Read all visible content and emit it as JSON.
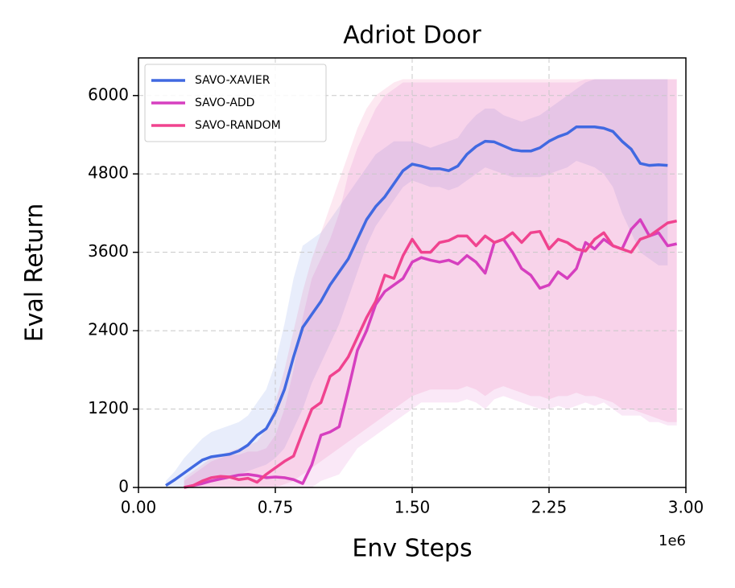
{
  "chart_data": {
    "type": "line",
    "title": "Adriot Door",
    "xlabel": "Env Steps",
    "ylabel": "Eval Return",
    "x_offset_label": "1e6",
    "xlim": [
      0,
      3.0
    ],
    "ylim": [
      0,
      6576
    ],
    "xticks": [
      {
        "value": 0,
        "label": "0.00"
      },
      {
        "value": 0.75,
        "label": "0.75"
      },
      {
        "value": 1.5,
        "label": "1.50"
      },
      {
        "value": 2.25,
        "label": "2.25"
      },
      {
        "value": 3.0,
        "label": "3.00"
      }
    ],
    "yticks": [
      0,
      1200,
      2400,
      3600,
      4800,
      6000
    ],
    "grid": true,
    "legend_loc": "upper left",
    "x": [
      0.15,
      0.2,
      0.25,
      0.3,
      0.35,
      0.4,
      0.45,
      0.5,
      0.55,
      0.6,
      0.65,
      0.7,
      0.75,
      0.8,
      0.85,
      0.9,
      0.95,
      1.0,
      1.05,
      1.1,
      1.15,
      1.2,
      1.25,
      1.3,
      1.35,
      1.4,
      1.45,
      1.5,
      1.55,
      1.6,
      1.65,
      1.7,
      1.75,
      1.8,
      1.85,
      1.9,
      1.95,
      2.0,
      2.05,
      2.1,
      2.15,
      2.2,
      2.25,
      2.3,
      2.35,
      2.4,
      2.45,
      2.5,
      2.55,
      2.6,
      2.65,
      2.7,
      2.75,
      2.8,
      2.85,
      2.9,
      2.95
    ],
    "series": [
      {
        "name": "SAVO-XAVIER",
        "color": "#4169e1",
        "values": [
          30,
          120,
          220,
          320,
          420,
          470,
          490,
          510,
          560,
          650,
          800,
          900,
          1150,
          1500,
          2000,
          2450,
          2650,
          2850,
          3100,
          3300,
          3500,
          3800,
          4100,
          4300,
          4450,
          4650,
          4850,
          4950,
          4920,
          4880,
          4880,
          4850,
          4920,
          5100,
          5220,
          5300,
          5290,
          5230,
          5170,
          5150,
          5150,
          5200,
          5300,
          5370,
          5420,
          5520,
          5520,
          5520,
          5500,
          5450,
          5300,
          5180,
          4960,
          4930,
          4940,
          4930,
          null
        ],
        "lower": [
          0,
          0,
          0,
          0,
          50,
          100,
          150,
          180,
          200,
          250,
          300,
          350,
          450,
          600,
          900,
          1200,
          1600,
          1900,
          2200,
          2500,
          2900,
          3300,
          3700,
          4000,
          4200,
          4400,
          4600,
          4700,
          4650,
          4600,
          4600,
          4550,
          4600,
          4700,
          4800,
          4900,
          4850,
          4800,
          4750,
          4750,
          4750,
          4750,
          4800,
          4850,
          4900,
          5000,
          4950,
          4900,
          4800,
          4600,
          4200,
          3900,
          3600,
          3500,
          3400,
          3400,
          null
        ],
        "upper": [
          100,
          250,
          450,
          600,
          750,
          850,
          900,
          950,
          1000,
          1100,
          1300,
          1500,
          1900,
          2500,
          3200,
          3700,
          3800,
          3900,
          4100,
          4300,
          4500,
          4700,
          4900,
          5100,
          5200,
          5300,
          5300,
          5300,
          5250,
          5200,
          5250,
          5300,
          5350,
          5550,
          5700,
          5800,
          5800,
          5700,
          5650,
          5600,
          5650,
          5700,
          5800,
          5900,
          6000,
          6100,
          6200,
          6250,
          6250,
          6250,
          6250,
          6250,
          6250,
          6250,
          6250,
          6250,
          null
        ]
      },
      {
        "name": "SAVO-ADD",
        "color": "#d63fbf",
        "values": [
          null,
          null,
          0,
          30,
          60,
          100,
          130,
          160,
          190,
          200,
          180,
          150,
          160,
          150,
          120,
          60,
          350,
          800,
          850,
          930,
          1500,
          2100,
          2400,
          2800,
          3000,
          3100,
          3200,
          3450,
          3520,
          3480,
          3450,
          3480,
          3420,
          3550,
          3450,
          3280,
          3750,
          3800,
          3600,
          3350,
          3250,
          3050,
          3100,
          3300,
          3200,
          3350,
          3750,
          3650,
          3800,
          3700,
          3650,
          3950,
          4100,
          3850,
          3900,
          3700,
          3730
        ],
        "lower": [
          null,
          null,
          0,
          0,
          0,
          0,
          0,
          0,
          0,
          0,
          0,
          0,
          0,
          0,
          0,
          0,
          0,
          100,
          150,
          200,
          400,
          600,
          700,
          800,
          900,
          1000,
          1100,
          1200,
          1300,
          1300,
          1300,
          1300,
          1300,
          1350,
          1300,
          1200,
          1350,
          1400,
          1350,
          1300,
          1250,
          1200,
          1200,
          1250,
          1200,
          1250,
          1300,
          1250,
          1300,
          1200,
          1100,
          1100,
          1100,
          1000,
          1000,
          950,
          950
        ],
        "upper": [
          null,
          null,
          100,
          200,
          300,
          400,
          450,
          500,
          500,
          550,
          550,
          600,
          800,
          1200,
          1800,
          2600,
          3200,
          3500,
          3800,
          4200,
          4800,
          5200,
          5500,
          5800,
          6000,
          6100,
          6200,
          6200,
          6200,
          6200,
          6200,
          6200,
          6200,
          6200,
          6200,
          6200,
          6200,
          6200,
          6200,
          6200,
          6200,
          6200,
          6200,
          6200,
          6200,
          6200,
          6250,
          6250,
          6250,
          6250,
          6250,
          6250,
          6250,
          6250,
          6250,
          6250,
          6250
        ]
      },
      {
        "name": "SAVO-RANDOM",
        "color": "#f0438f",
        "values": [
          null,
          null,
          0,
          30,
          100,
          150,
          170,
          160,
          120,
          140,
          80,
          200,
          300,
          400,
          480,
          850,
          1200,
          1300,
          1700,
          1800,
          2000,
          2300,
          2600,
          2850,
          3250,
          3200,
          3550,
          3800,
          3600,
          3600,
          3750,
          3780,
          3850,
          3850,
          3700,
          3850,
          3750,
          3800,
          3900,
          3750,
          3900,
          3920,
          3650,
          3800,
          3750,
          3650,
          3620,
          3800,
          3900,
          3700,
          3650,
          3600,
          3800,
          3850,
          3950,
          4050,
          4080
        ],
        "lower": [
          null,
          null,
          0,
          0,
          0,
          0,
          0,
          0,
          0,
          0,
          0,
          0,
          0,
          50,
          100,
          200,
          300,
          400,
          500,
          600,
          700,
          800,
          900,
          1000,
          1100,
          1200,
          1300,
          1400,
          1450,
          1500,
          1500,
          1500,
          1500,
          1550,
          1500,
          1400,
          1500,
          1550,
          1500,
          1450,
          1400,
          1400,
          1350,
          1400,
          1400,
          1450,
          1400,
          1400,
          1350,
          1300,
          1200,
          1200,
          1150,
          1100,
          1050,
          1000,
          1000
        ],
        "upper": [
          null,
          null,
          150,
          250,
          350,
          450,
          500,
          550,
          600,
          650,
          700,
          900,
          1300,
          1800,
          2400,
          3000,
          3500,
          3900,
          4300,
          4700,
          5100,
          5500,
          5800,
          6000,
          6100,
          6200,
          6250,
          6250,
          6250,
          6250,
          6250,
          6250,
          6250,
          6250,
          6250,
          6250,
          6250,
          6250,
          6250,
          6250,
          6250,
          6250,
          6250,
          6250,
          6250,
          6250,
          6250,
          6250,
          6250,
          6250,
          6250,
          6250,
          6250,
          6250,
          6250,
          6250,
          6250
        ]
      }
    ]
  }
}
